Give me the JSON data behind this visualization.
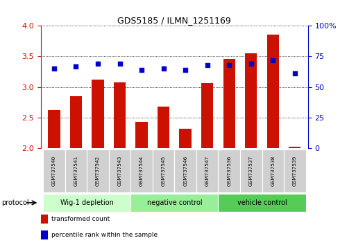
{
  "title": "GDS5185 / ILMN_1251169",
  "samples": [
    "GSM737540",
    "GSM737541",
    "GSM737542",
    "GSM737543",
    "GSM737544",
    "GSM737545",
    "GSM737546",
    "GSM737547",
    "GSM737536",
    "GSM737537",
    "GSM737538",
    "GSM737539"
  ],
  "transformed_count": [
    2.62,
    2.85,
    3.12,
    3.07,
    2.43,
    2.68,
    2.32,
    3.06,
    3.46,
    3.55,
    3.85,
    2.02
  ],
  "percentile_rank": [
    65,
    67,
    69,
    69,
    64,
    65,
    64,
    68,
    68,
    69,
    72,
    61
  ],
  "ylim_left": [
    2,
    4
  ],
  "ylim_right": [
    0,
    100
  ],
  "yticks_left": [
    2,
    2.5,
    3,
    3.5,
    4
  ],
  "yticks_right": [
    0,
    25,
    50,
    75,
    100
  ],
  "ytick_right_labels": [
    "0",
    "25",
    "50",
    "75",
    "100%"
  ],
  "groups": [
    {
      "label": "Wig-1 depletion",
      "start": 0,
      "end": 4,
      "color": "#ccffcc"
    },
    {
      "label": "negative control",
      "start": 4,
      "end": 8,
      "color": "#99ee99"
    },
    {
      "label": "vehicle control",
      "start": 8,
      "end": 12,
      "color": "#55cc55"
    }
  ],
  "bar_color": "#cc1100",
  "scatter_color": "#0000cc",
  "bar_bottom": 2,
  "left_axis_color": "#cc1100",
  "right_axis_color": "#0000cc",
  "legend_items": [
    {
      "label": "transformed count",
      "color": "#cc1100"
    },
    {
      "label": "percentile rank within the sample",
      "color": "#0000cc"
    }
  ],
  "protocol_label": "protocol",
  "grid_color": "#000000",
  "sample_box_color": "#d0d0d0",
  "sample_box_edge": "#ffffff"
}
